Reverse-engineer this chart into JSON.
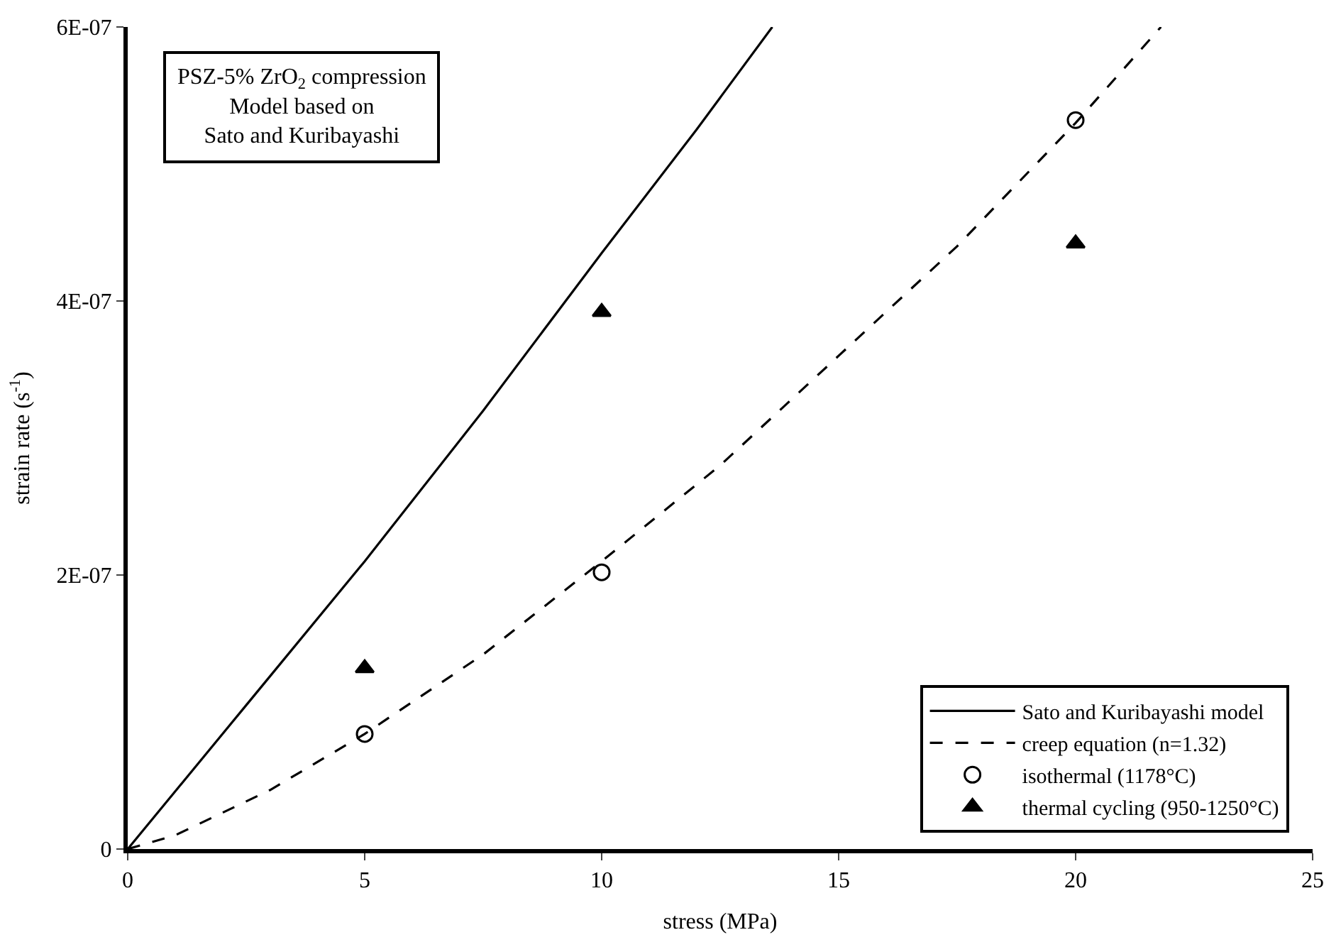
{
  "chart_data": {
    "type": "line",
    "xlabel": "stress (MPa)",
    "ylabel": "strain rate (s$^{-1}$)",
    "xlim": [
      0,
      25
    ],
    "xticks": [
      0,
      5,
      10,
      15,
      20,
      25
    ],
    "ylim": [
      0,
      6e-07
    ],
    "yticks": [
      0,
      {
        "value": 2e-07,
        "label": "2E-07"
      },
      {
        "value": 4e-07,
        "label": "4E-07"
      },
      {
        "value": 6e-07,
        "label": "6E-07"
      }
    ],
    "legend": "bottom right",
    "annotations": [
      "PSZ-5% ZrO$_{2}$ compression\nModel based on\nSato and Kuribayashi"
    ],
    "series": [
      {
        "name": "Sato and Kuribayashi model",
        "color": "#000000",
        "line_style": "solid",
        "marker": "none",
        "x": [
          0,
          2.5,
          5,
          7.5,
          10,
          12,
          13.6
        ],
        "values": [
          0,
          1.05e-07,
          2.1e-07,
          3.2e-07,
          4.35e-07,
          5.25e-07,
          6e-07
        ]
      },
      {
        "name": "creep equation (n=1.32)",
        "color": "#000000",
        "line_style": "dashed",
        "marker": "none",
        "x": [
          0,
          1,
          3,
          5,
          7.5,
          10,
          12.5,
          15,
          17.5,
          20,
          21.8
        ],
        "values": [
          0,
          1e-08,
          4.3e-08,
          8.4e-08,
          1.42e-07,
          2.1e-07,
          2.8e-07,
          3.6e-07,
          4.4e-07,
          5.3e-07,
          6e-07
        ]
      },
      {
        "name": "isothermal (1178°C)",
        "type": "scatter",
        "color": "#000000",
        "marker": "circle",
        "x": [
          5,
          10,
          20
        ],
        "values": [
          8.4e-08,
          2.02e-07,
          5.32e-07
        ]
      },
      {
        "name": "thermal cycling (950-1250°C)",
        "type": "scatter",
        "color": "#000000",
        "marker": "triangle",
        "x": [
          5,
          10,
          20
        ],
        "values": [
          1.32e-07,
          3.92e-07,
          4.42e-07
        ]
      }
    ]
  }
}
